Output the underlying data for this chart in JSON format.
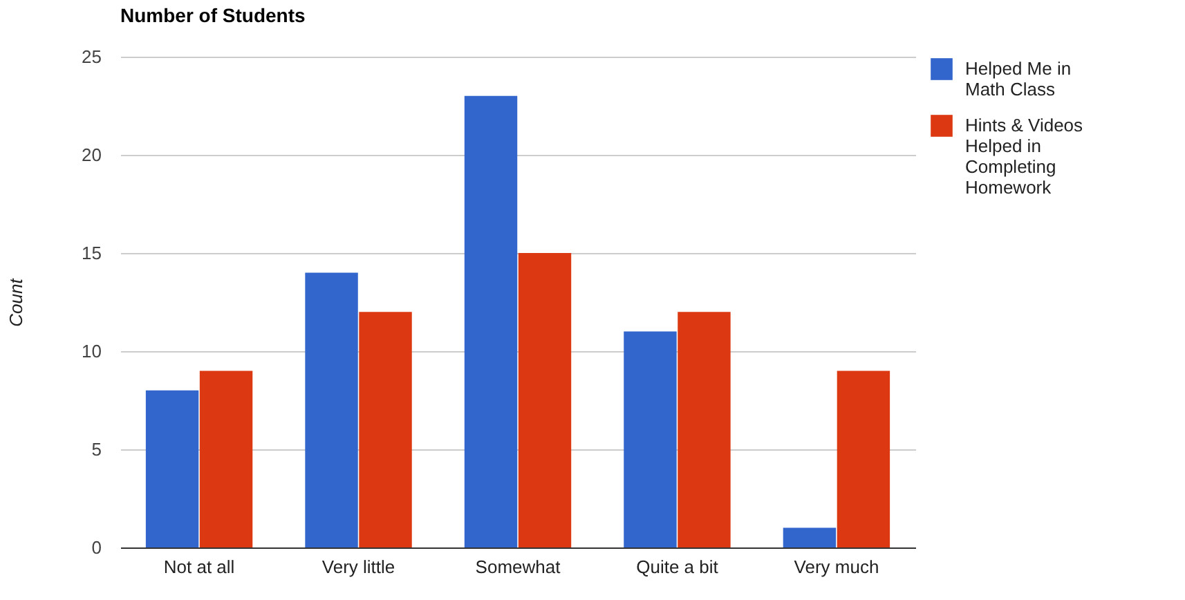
{
  "chart_data": {
    "type": "bar",
    "title": "Number of Students",
    "ylabel": "Count",
    "categories": [
      "Not at all",
      "Very little",
      "Somewhat",
      "Quite a bit",
      "Very much"
    ],
    "series": [
      {
        "name": "Helped Me in Math Class",
        "color": "#3366cc",
        "values": [
          8,
          14,
          23,
          11,
          1
        ]
      },
      {
        "name": "Hints & Videos Helped in Completing Homework",
        "color": "#dc3912",
        "values": [
          9,
          12,
          15,
          12,
          9
        ]
      }
    ],
    "ylim": [
      0,
      25
    ],
    "yticks": [
      0,
      5,
      10,
      15,
      20,
      25
    ],
    "grid": "y",
    "legend": "top right"
  }
}
